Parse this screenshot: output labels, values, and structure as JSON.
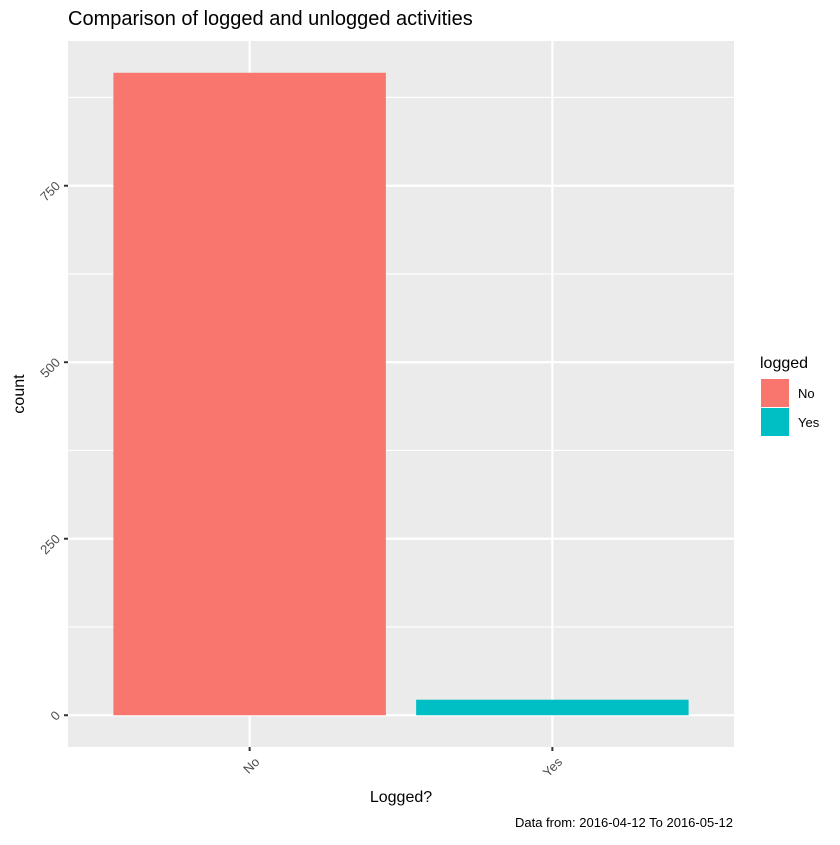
{
  "chart_data": {
    "type": "bar",
    "title": "Comparison of logged and unlogged activities",
    "xlabel": "Logged?",
    "ylabel": "count",
    "caption": "Data from: 2016-04-12 To 2016-05-12",
    "categories": [
      "No",
      "Yes"
    ],
    "values": [
      910,
      22
    ],
    "bar_colors": [
      "#F8766D",
      "#00BFC4"
    ],
    "ylim": [
      -45,
      955
    ],
    "yticks": [
      0,
      250,
      500,
      750
    ],
    "yticks_minor": [
      125,
      375,
      625,
      875
    ],
    "grid": true,
    "legend": {
      "title": "logged",
      "entries": [
        {
          "label": "No",
          "color": "#F8766D"
        },
        {
          "label": "Yes",
          "color": "#00BFC4"
        }
      ],
      "placement": "right"
    },
    "panel_background": "#EBEBEB",
    "grid_color": "#FFFFFF"
  }
}
